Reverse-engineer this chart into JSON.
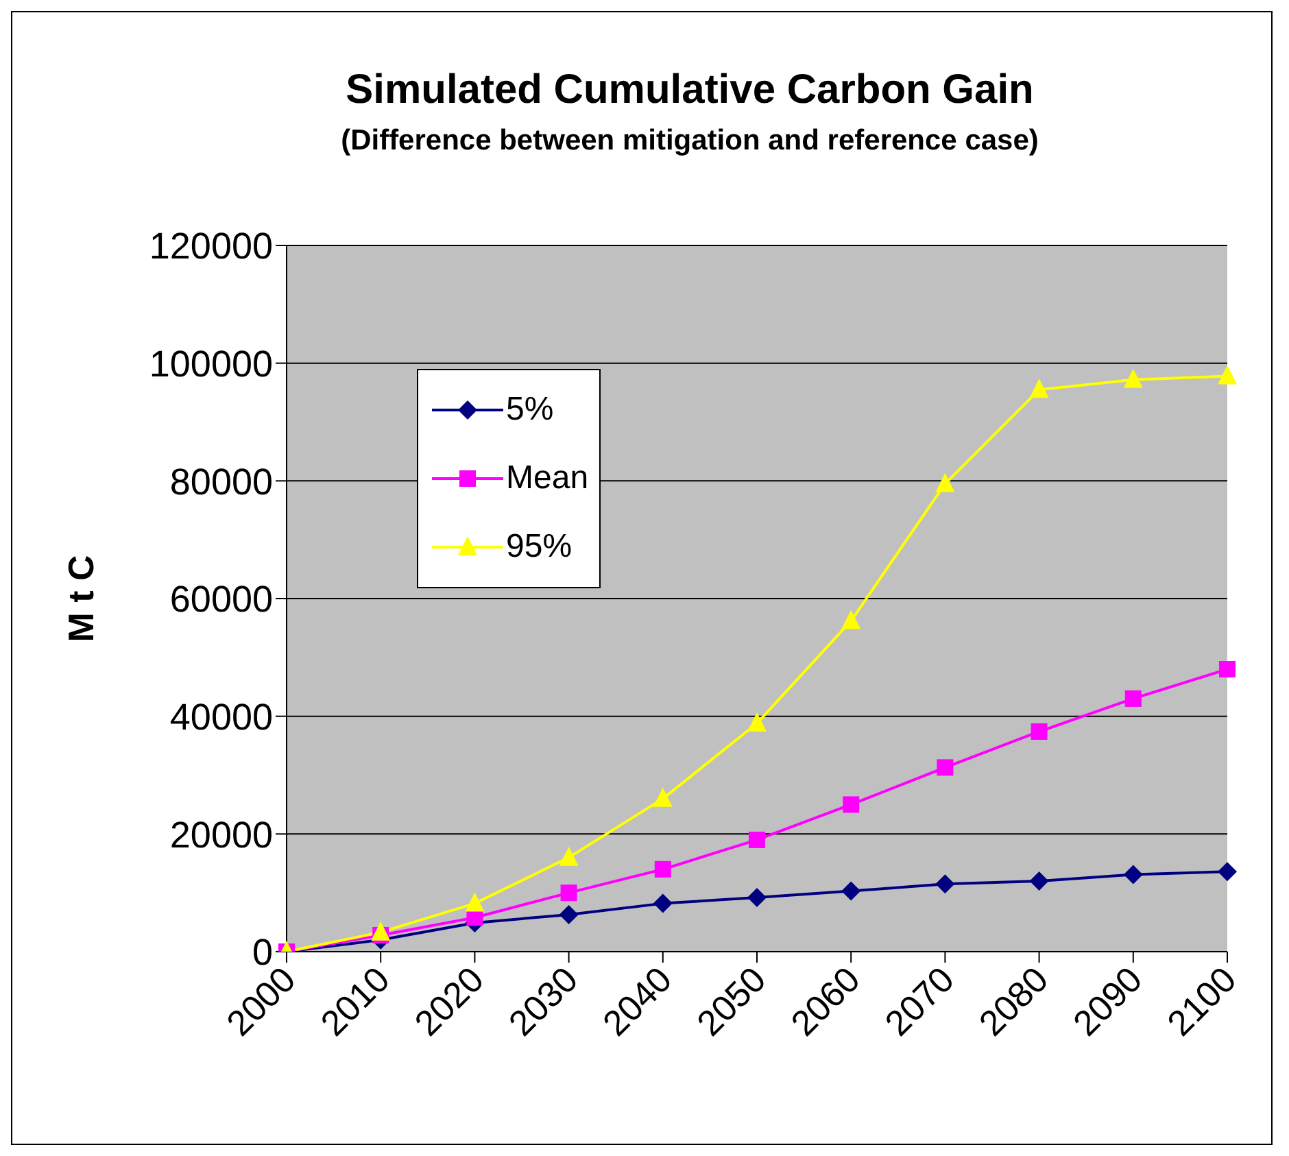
{
  "chart_data": {
    "type": "line",
    "title": "Simulated Cumulative Carbon Gain",
    "subtitle": "(Difference between mitigation and reference case)",
    "ylabel": "M t C",
    "categories": [
      "2000",
      "2010",
      "2020",
      "2030",
      "2040",
      "2050",
      "2060",
      "2070",
      "2080",
      "2090",
      "2100"
    ],
    "series": [
      {
        "name": "5%",
        "color": "#000080",
        "marker": "diamond",
        "values": [
          0,
          2000,
          4900,
          6300,
          8200,
          9200,
          10300,
          11500,
          12000,
          13100,
          13600
        ]
      },
      {
        "name": "Mean",
        "color": "#ff00ff",
        "marker": "square",
        "values": [
          0,
          2800,
          5800,
          10000,
          14000,
          19000,
          25000,
          31300,
          37400,
          43000,
          48000
        ]
      },
      {
        "name": "95%",
        "color": "#ffff00",
        "marker": "triangle",
        "values": [
          0,
          3300,
          8200,
          16000,
          26000,
          38800,
          56200,
          79500,
          95500,
          97200,
          97800
        ]
      }
    ],
    "ylim": [
      0,
      120000
    ],
    "yticks": [
      0,
      20000,
      40000,
      60000,
      80000,
      100000,
      120000
    ],
    "grid": "y",
    "legend": "top left",
    "line_style": "solid"
  }
}
